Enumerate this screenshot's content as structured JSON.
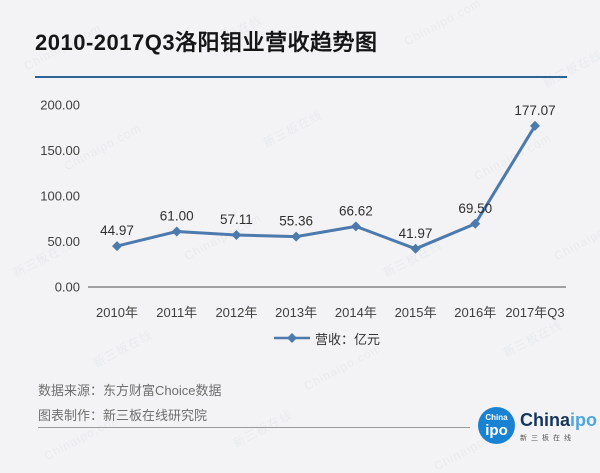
{
  "title": "2010-2017Q3洛阳钼业营收趋势图",
  "colors": {
    "line": "#4d7aad",
    "title_rule": "#2a6496",
    "axis": "#a0a0a2",
    "tick_text": "#3f3f3f",
    "data_label": "#2f2f2f",
    "logo_blue": "#1a82d2",
    "brand_navy": "#16365c",
    "brand_light_blue": "#4da6e0"
  },
  "chart_data": {
    "type": "line",
    "title": "2010-2017Q3洛阳钼业营收趋势图",
    "categories": [
      "2010年",
      "2011年",
      "2012年",
      "2013年",
      "2014年",
      "2015年",
      "2016年",
      "2017年Q3"
    ],
    "series": [
      {
        "name": "营收",
        "values": [
          44.97,
          61.0,
          57.11,
          55.36,
          66.62,
          41.97,
          69.5,
          177.07
        ]
      }
    ],
    "point_labels": [
      "44.97",
      "61.00",
      "57.11",
      "55.36",
      "66.62",
      "41.97",
      "69.50",
      "177.07"
    ],
    "ylim": [
      0,
      200
    ],
    "yticks": [
      0,
      50,
      100,
      150,
      200
    ],
    "ytick_labels": [
      "0.00",
      "50.00",
      "100.00",
      "150.00",
      "200.00"
    ],
    "legend_label": "营收：亿元",
    "legend_position": "bottom-center",
    "grid": false,
    "marker": "diamond",
    "unit": "亿元"
  },
  "footer": {
    "source": "数据来源：东方财富Choice数据",
    "maker": "图表制作：新三板在线研究院"
  },
  "logo": {
    "circle_top": "China",
    "circle_bottom": "ipo",
    "brand_part1": "China",
    "brand_part2": "ipo",
    "tagline": "新三板在线"
  },
  "watermarks": [
    "Chinaipo.com",
    "新三板在线"
  ]
}
